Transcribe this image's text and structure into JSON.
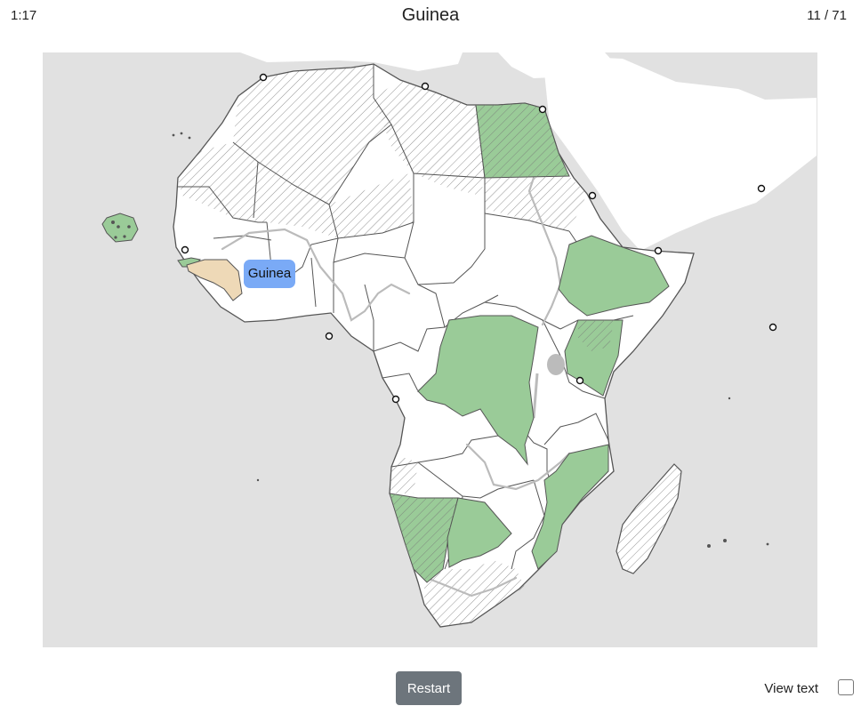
{
  "header": {
    "timer": "1:17",
    "question": "Guinea",
    "progress": "11 / 71"
  },
  "map": {
    "target_label": "Guinea",
    "colors": {
      "ocean": "#e1e1e1",
      "land": "#ffffff",
      "correct": "#9acb98",
      "target": "#eed9b7",
      "label": "#7aaaf6",
      "border": "#444444",
      "river_lake": "#bbbbbb"
    }
  },
  "footer": {
    "restart_label": "Restart",
    "view_text_label": "View text",
    "view_text_checked": false
  }
}
